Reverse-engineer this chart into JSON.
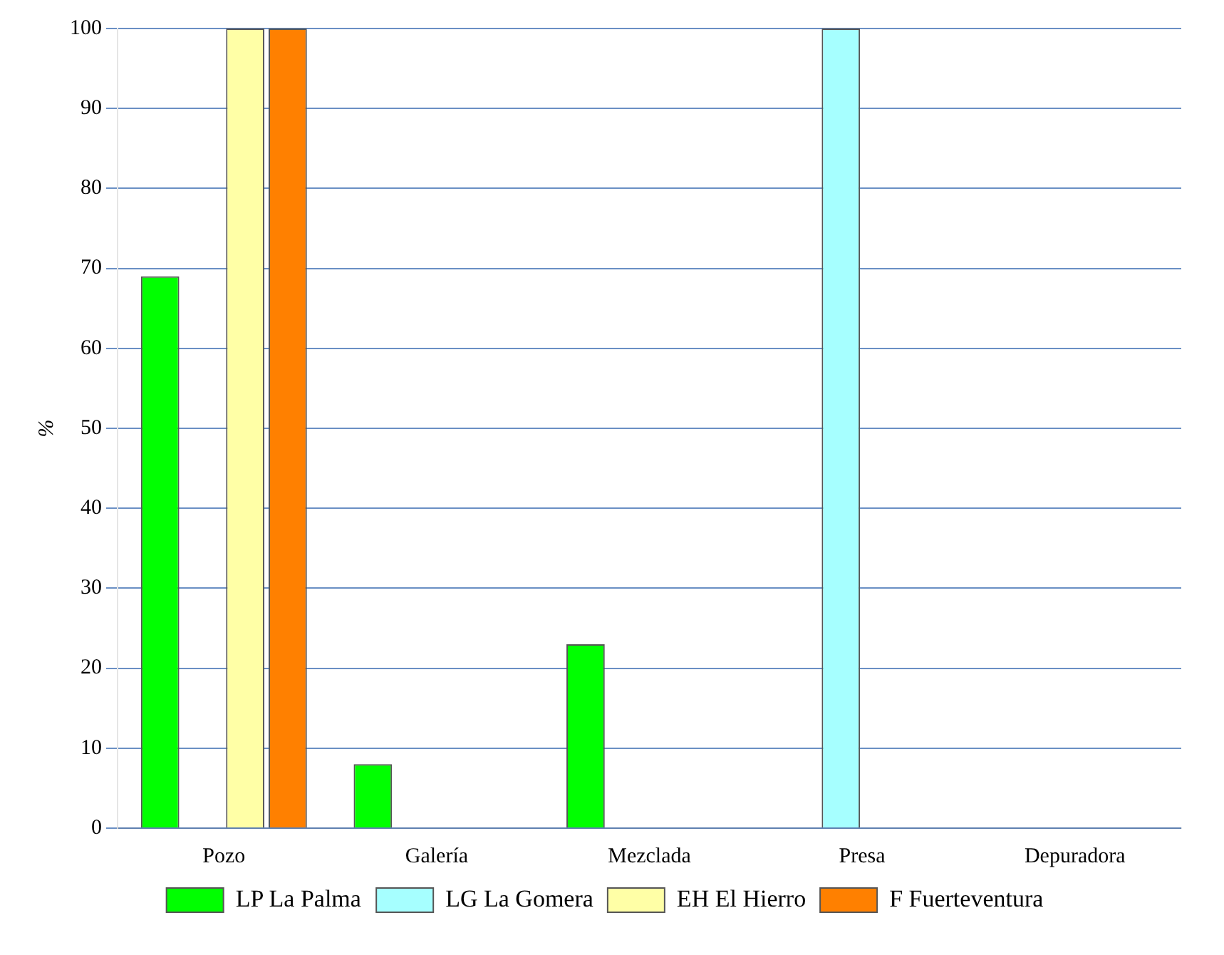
{
  "chart_data": {
    "type": "bar",
    "ylabel": "%",
    "categories": [
      "Pozo",
      "Galería",
      "Mezclada",
      "Presa",
      "Depuradora"
    ],
    "series": [
      {
        "name": "LP La Palma",
        "color": "#00ff00",
        "values": [
          69,
          8,
          23,
          0,
          0
        ]
      },
      {
        "name": "LG La Gomera",
        "color": "#a6ffff",
        "values": [
          0,
          0,
          0,
          100,
          0
        ]
      },
      {
        "name": "EH El Hierro",
        "color": "#ffffa6",
        "values": [
          100,
          0,
          0,
          0,
          0
        ]
      },
      {
        "name": "F Fuerteventura",
        "color": "#ff8000",
        "values": [
          100,
          0,
          0,
          0,
          0
        ]
      }
    ],
    "ylim": [
      0,
      100
    ],
    "yticks": [
      0,
      10,
      20,
      30,
      40,
      50,
      60,
      70,
      80,
      90,
      100
    ],
    "grid": "y",
    "legend": "bottom"
  }
}
